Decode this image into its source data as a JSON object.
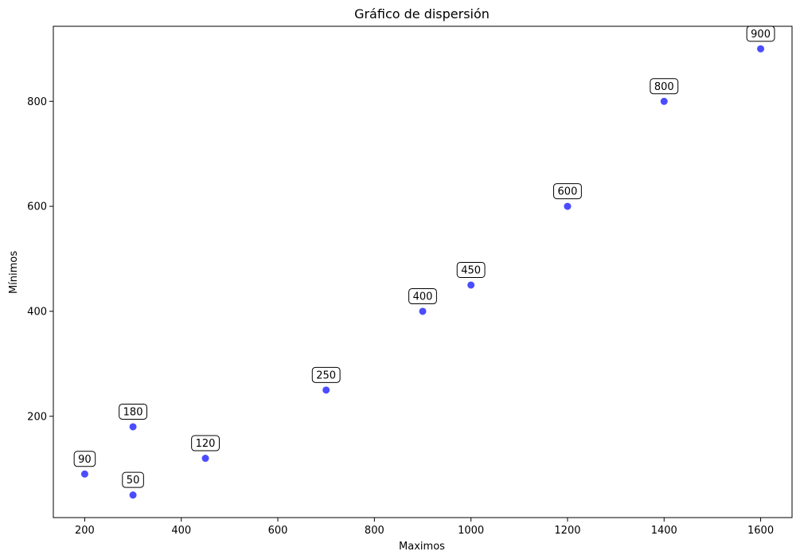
{
  "chart_data": {
    "type": "scatter",
    "title": "Gráfico de dispersión",
    "xlabel": "Maximos",
    "ylabel": "Mínimos",
    "xlim": [
      135,
      1665
    ],
    "ylim": [
      7,
      943
    ],
    "x_ticks": [
      200,
      400,
      600,
      800,
      1000,
      1200,
      1400,
      1600
    ],
    "y_ticks": [
      200,
      400,
      600,
      800
    ],
    "grid": false,
    "legend": "none",
    "marker_color": "#0000ff",
    "marker_alpha": 0.7,
    "points": [
      {
        "x": 200,
        "y": 90,
        "label": "90"
      },
      {
        "x": 300,
        "y": 50,
        "label": "50"
      },
      {
        "x": 300,
        "y": 180,
        "label": "180"
      },
      {
        "x": 450,
        "y": 120,
        "label": "120"
      },
      {
        "x": 700,
        "y": 250,
        "label": "250"
      },
      {
        "x": 900,
        "y": 400,
        "label": "400"
      },
      {
        "x": 1000,
        "y": 450,
        "label": "450"
      },
      {
        "x": 1200,
        "y": 600,
        "label": "600"
      },
      {
        "x": 1400,
        "y": 800,
        "label": "800"
      },
      {
        "x": 1600,
        "y": 900,
        "label": "900"
      }
    ]
  }
}
